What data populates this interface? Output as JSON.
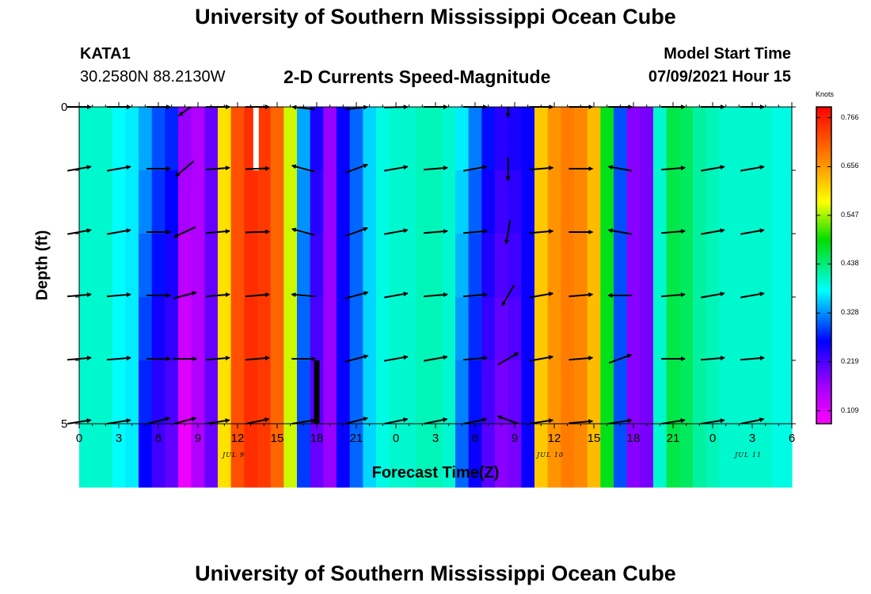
{
  "header": {
    "title_top": "University of Southern Mississippi Ocean Cube",
    "station_id": "KATA1",
    "location": "30.2580N  88.2130W",
    "chart_title": "2-D Currents Speed-Magnitude",
    "model_start_label": "Model Start Time",
    "model_start_value": "07/09/2021 Hour 15",
    "title_bottom": "University of Southern Mississippi Ocean Cube"
  },
  "chart_data": {
    "type": "heatmap",
    "title": "2-D Currents Speed-Magnitude",
    "xlabel": "Forecast Time(Z)",
    "ylabel": "Depth (ft)",
    "y_ticks": [
      "0",
      "5"
    ],
    "ylim": [
      0,
      5
    ],
    "x_ticks": [
      "0",
      "3",
      "6",
      "9",
      "12",
      "15",
      "18",
      "21",
      "0",
      "3",
      "6",
      "9",
      "12",
      "15",
      "18",
      "21",
      "0",
      "3",
      "6"
    ],
    "x_hours_range": [
      0,
      54
    ],
    "date_labels": [
      {
        "text": "JUL 9",
        "hour": 12
      },
      {
        "text": "JUL 10",
        "hour": 36
      },
      {
        "text": "JUL 11",
        "hour": 51
      }
    ],
    "colorbar": {
      "title": "Knots",
      "ticks": [
        "0.766",
        "0.656",
        "0.547",
        "0.438",
        "0.328",
        "0.219",
        "0.109"
      ],
      "range": [
        0.08,
        0.79
      ]
    },
    "depth_levels": [
      0,
      1,
      2,
      3,
      4,
      5
    ],
    "time_columns_hours": [
      0,
      1,
      2,
      3,
      4,
      5,
      6,
      7,
      8,
      9,
      10,
      11,
      12,
      13,
      14,
      15,
      16,
      17,
      18,
      19,
      20,
      21,
      22,
      23,
      24,
      25,
      26,
      27,
      28,
      29,
      30,
      31,
      32,
      33,
      34,
      35,
      36,
      37,
      38,
      39,
      40,
      41,
      42,
      43,
      44,
      45,
      46,
      47,
      48,
      49,
      50,
      51,
      52,
      53,
      54
    ],
    "speed_profile_knots": [
      0.4,
      0.4,
      0.4,
      0.38,
      0.37,
      0.34,
      0.3,
      0.28,
      0.17,
      0.15,
      0.2,
      0.6,
      0.72,
      0.75,
      0.74,
      0.7,
      0.56,
      0.34,
      0.25,
      0.17,
      0.26,
      0.31,
      0.36,
      0.39,
      0.4,
      0.4,
      0.41,
      0.41,
      0.4,
      0.37,
      0.32,
      0.27,
      0.24,
      0.25,
      0.26,
      0.62,
      0.66,
      0.68,
      0.67,
      0.63,
      0.48,
      0.3,
      0.18,
      0.19,
      0.4,
      0.46,
      0.45,
      0.42,
      0.41,
      0.4,
      0.4,
      0.4,
      0.4,
      0.39,
      0.39
    ],
    "arrow_hours": [
      0,
      3,
      6,
      8,
      10.5,
      13.5,
      17,
      21,
      24,
      27,
      30,
      32.5,
      35,
      38,
      41,
      45,
      48,
      51
    ],
    "arrow_rows_depth": [
      0,
      1,
      2,
      3,
      4,
      5
    ],
    "arrow_angles_deg": [
      [
        0,
        0,
        0,
        -120,
        0,
        0,
        160,
        20,
        10,
        5,
        0,
        -92,
        0,
        -5,
        0,
        0,
        0,
        0
      ],
      [
        10,
        10,
        0,
        -140,
        5,
        2,
        165,
        20,
        10,
        5,
        10,
        -90,
        5,
        0,
        170,
        5,
        10,
        10
      ],
      [
        10,
        10,
        0,
        -155,
        5,
        2,
        165,
        20,
        10,
        5,
        5,
        -100,
        5,
        0,
        170,
        5,
        10,
        10
      ],
      [
        5,
        5,
        0,
        15,
        5,
        5,
        175,
        15,
        10,
        5,
        5,
        -120,
        10,
        5,
        180,
        5,
        10,
        10
      ],
      [
        5,
        5,
        0,
        0,
        5,
        5,
        0,
        15,
        10,
        10,
        5,
        30,
        10,
        5,
        20,
        0,
        5,
        5
      ],
      [
        10,
        10,
        20,
        20,
        10,
        15,
        10,
        20,
        15,
        15,
        15,
        150,
        10,
        5,
        10,
        10,
        10,
        15
      ]
    ]
  }
}
